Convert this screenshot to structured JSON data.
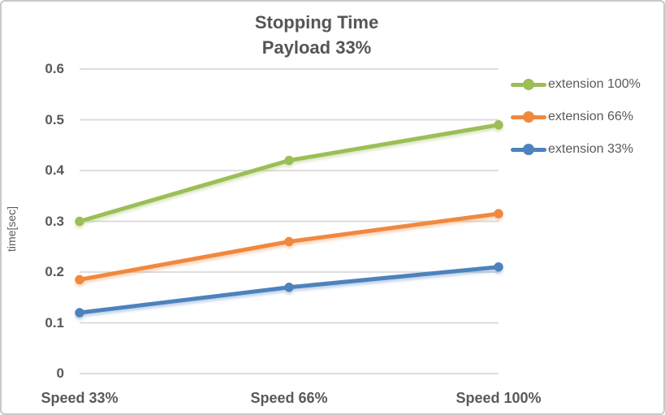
{
  "chart_data": {
    "type": "line",
    "title": "Stopping Time",
    "subtitle": "Payload 33%",
    "categories": [
      "Speed 33%",
      "Speed 66%",
      "Speed 100%"
    ],
    "series": [
      {
        "name": "extension 100%",
        "color": "#9CBE57",
        "values": [
          0.3,
          0.42,
          0.49
        ]
      },
      {
        "name": "extension 66%",
        "color": "#F0883E",
        "values": [
          0.185,
          0.26,
          0.315
        ]
      },
      {
        "name": "extension 33%",
        "color": "#4D82BC",
        "values": [
          0.12,
          0.17,
          0.21
        ]
      }
    ],
    "xlabel": "",
    "ylabel": "time[sec]",
    "ylim": [
      0,
      0.6
    ],
    "yticks": [
      "0",
      "0.1",
      "0.2",
      "0.3",
      "0.4",
      "0.5",
      "0.6"
    ],
    "grid": "horizontal",
    "legend_position": "right",
    "marker": "circle"
  },
  "colors": {
    "text": "#595959",
    "gridline": "#D9D9D9",
    "border": "#C9C9C9"
  }
}
